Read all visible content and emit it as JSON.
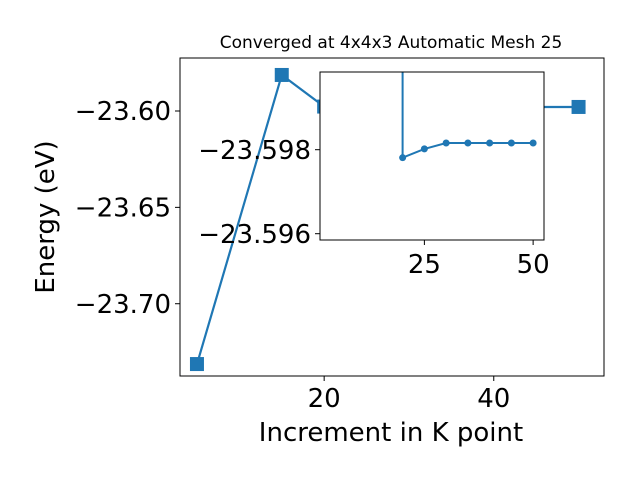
{
  "chart_data": [
    {
      "type": "line",
      "title": "Converged at 4x4x3 Automatic Mesh 25",
      "xlabel": "Increment in K point",
      "ylabel": "Energy (eV)",
      "xlim": [
        3,
        53
      ],
      "ylim": [
        -23.7375,
        -23.5725
      ],
      "x_ticks": [
        20,
        40
      ],
      "x_tick_labels": [
        "20",
        "40"
      ],
      "y_ticks": [
        -23.6,
        -23.65,
        -23.7
      ],
      "y_tick_labels": [
        "−23.60",
        "−23.65",
        "−23.70"
      ],
      "grid": false,
      "series": [
        {
          "color": "#1f77b4",
          "marker": "square",
          "x": [
            5,
            15,
            20,
            25,
            30,
            35,
            40,
            45,
            50
          ],
          "y": [
            -23.7313,
            -23.5813,
            -23.5977,
            -23.5978,
            -23.5979,
            -23.5979,
            -23.5979,
            -23.5979,
            -23.5979
          ]
        }
      ]
    },
    {
      "type": "line",
      "role": "inset",
      "xlim": [
        1,
        52.5
      ],
      "ylim": [
        -23.59585,
        -23.59985
      ],
      "x_ticks": [
        25,
        50
      ],
      "x_tick_labels": [
        "25",
        "50"
      ],
      "y_ticks": [
        -23.598,
        -23.596
      ],
      "y_tick_labels": [
        "−23.598",
        "−23.596"
      ],
      "grid": false,
      "series": [
        {
          "color": "#1f77b4",
          "marker": "circle",
          "x": [
            20,
            20,
            25,
            30,
            35,
            40,
            45,
            50
          ],
          "y": [
            -23.59985,
            -23.59781,
            -23.59802,
            -23.59816,
            -23.59816,
            -23.59816,
            -23.59816,
            -23.59816
          ]
        }
      ]
    }
  ]
}
